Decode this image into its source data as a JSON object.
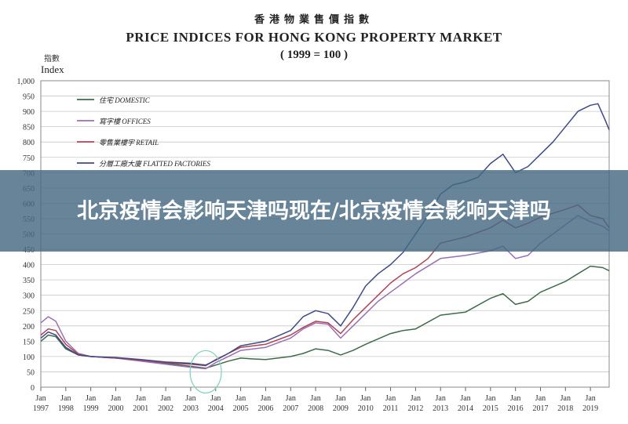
{
  "header": {
    "title_cn": "香港物業售價指數",
    "title_en": "PRICE INDICES FOR HONG KONG PROPERTY MARKET",
    "subtitle": "( 1999 = 100 )"
  },
  "banner": {
    "text": "北京疫情会影响天津吗现在/北京疫情会影响天津吗"
  },
  "chart_data": {
    "type": "line",
    "title": "PRICE INDICES FOR HONG KONG PROPERTY MARKET",
    "subtitle": "( 1999 = 100 )",
    "ylabel_cn": "指數",
    "ylabel": "Index",
    "ylim": [
      0,
      1000
    ],
    "yticks": [
      0,
      50,
      100,
      150,
      200,
      250,
      300,
      350,
      400,
      450,
      500,
      550,
      600,
      650,
      700,
      750,
      800,
      850,
      900,
      950,
      1000
    ],
    "ytick_labels": [
      "0",
      "50",
      "100",
      "150",
      "200",
      "250",
      "300",
      "350",
      "400",
      "450",
      "500",
      "550",
      "600",
      "650",
      "700",
      "750",
      "800",
      "850",
      "900",
      "950",
      "1,000"
    ],
    "xlim": [
      1997.0,
      2019.75
    ],
    "xticks": [
      {
        "year": 1997,
        "top": "Jan",
        "bottom": "1997"
      },
      {
        "year": 1998,
        "top": "Jan",
        "bottom": "1998"
      },
      {
        "year": 1999,
        "top": "Jan",
        "bottom": "1999"
      },
      {
        "year": 2000,
        "top": "Jan",
        "bottom": "2000"
      },
      {
        "year": 2001,
        "top": "Jan",
        "bottom": "2001"
      },
      {
        "year": 2002,
        "top": "Jan",
        "bottom": "2002"
      },
      {
        "year": 2003,
        "top": "Jan",
        "bottom": "2003"
      },
      {
        "year": 2004,
        "top": "Jan",
        "bottom": "2004"
      },
      {
        "year": 2005,
        "top": "Jan",
        "bottom": "2005"
      },
      {
        "year": 2006,
        "top": "Jan",
        "bottom": "2006"
      },
      {
        "year": 2007,
        "top": "Jan",
        "bottom": "2007"
      },
      {
        "year": 2008,
        "top": "Jan",
        "bottom": "2008"
      },
      {
        "year": 2009,
        "top": "Jan",
        "bottom": "2009"
      },
      {
        "year": 2010,
        "top": "Jan",
        "bottom": "2010"
      },
      {
        "year": 2011,
        "top": "Jan",
        "bottom": "2011"
      },
      {
        "year": 2012,
        "top": "Jan",
        "bottom": "2012"
      },
      {
        "year": 2013,
        "top": "Jan",
        "bottom": "2013"
      },
      {
        "year": 2014,
        "top": "Jan",
        "bottom": "2014"
      },
      {
        "year": 2015,
        "top": "Jan",
        "bottom": "2015"
      },
      {
        "year": 2016,
        "top": "Jan",
        "bottom": "2016"
      },
      {
        "year": 2017,
        "top": "Jan",
        "bottom": "2017"
      },
      {
        "year": 2018,
        "top": "Jan",
        "bottom": "2018"
      },
      {
        "year": 2019,
        "top": "Jan",
        "bottom": "2019"
      }
    ],
    "grid": true,
    "legend_position": "top-left",
    "annotation": "circle around 2003 trough",
    "series": [
      {
        "name": "DOMESTIC",
        "name_cn": "住宅",
        "color": "#3d6b4a",
        "x": [
          1997.0,
          1997.3,
          1997.6,
          1998.0,
          1998.5,
          1999.0,
          2000.0,
          2001.0,
          2002.0,
          2003.0,
          2003.6,
          2004.0,
          2004.5,
          2005.0,
          2005.5,
          2006.0,
          2007.0,
          2007.5,
          2008.0,
          2008.5,
          2009.0,
          2009.5,
          2010.0,
          2011.0,
          2011.5,
          2012.0,
          2013.0,
          2014.0,
          2015.0,
          2015.5,
          2016.0,
          2016.5,
          2017.0,
          2018.0,
          2018.5,
          2019.0,
          2019.5,
          2019.75
        ],
        "values": [
          150,
          170,
          165,
          125,
          105,
          100,
          95,
          88,
          78,
          68,
          62,
          72,
          85,
          95,
          92,
          90,
          100,
          110,
          125,
          120,
          105,
          120,
          140,
          175,
          185,
          190,
          235,
          245,
          290,
          305,
          270,
          280,
          310,
          345,
          370,
          395,
          390,
          380
        ]
      },
      {
        "name": "OFFICES",
        "name_cn": "寫字樓",
        "color": "#9a6fb5",
        "x": [
          1997.0,
          1997.3,
          1997.6,
          1998.0,
          1998.5,
          1999.0,
          2000.0,
          2001.0,
          2002.0,
          2003.0,
          2003.6,
          2004.0,
          2004.5,
          2005.0,
          2006.0,
          2007.0,
          2007.5,
          2008.0,
          2008.5,
          2009.0,
          2009.5,
          2010.0,
          2010.5,
          2011.0,
          2011.5,
          2012.0,
          2013.0,
          2014.0,
          2015.0,
          2015.5,
          2016.0,
          2016.5,
          2017.0,
          2017.5,
          2018.0,
          2018.5,
          2019.0,
          2019.5,
          2019.75
        ],
        "values": [
          210,
          230,
          215,
          150,
          110,
          100,
          95,
          85,
          75,
          65,
          60,
          80,
          100,
          120,
          130,
          160,
          190,
          210,
          205,
          160,
          200,
          240,
          280,
          310,
          340,
          370,
          420,
          430,
          445,
          460,
          420,
          430,
          470,
          500,
          530,
          560,
          540,
          525,
          510
        ]
      },
      {
        "name": "RETAIL",
        "name_cn": "零售業樓宇",
        "color": "#b04257",
        "x": [
          1997.0,
          1997.3,
          1997.6,
          1998.0,
          1998.5,
          1999.0,
          2000.0,
          2001.0,
          2002.0,
          2003.0,
          2003.6,
          2004.0,
          2004.5,
          2005.0,
          2006.0,
          2007.0,
          2007.5,
          2008.0,
          2008.5,
          2009.0,
          2009.5,
          2010.0,
          2010.5,
          2011.0,
          2011.5,
          2012.0,
          2012.5,
          2013.0,
          2014.0,
          2015.0,
          2015.5,
          2016.0,
          2016.5,
          2017.0,
          2018.0,
          2018.5,
          2019.0,
          2019.5,
          2019.75
        ],
        "values": [
          170,
          190,
          185,
          140,
          108,
          100,
          95,
          88,
          80,
          75,
          70,
          90,
          110,
          130,
          140,
          170,
          195,
          215,
          210,
          175,
          220,
          260,
          300,
          340,
          370,
          390,
          420,
          470,
          490,
          520,
          545,
          520,
          535,
          555,
          580,
          595,
          560,
          550,
          520
        ]
      },
      {
        "name": "FLATTED FACTORIES",
        "name_cn": "分層工廠大廈",
        "color": "#3f4a86",
        "x": [
          1997.0,
          1997.3,
          1997.6,
          1998.0,
          1998.5,
          1999.0,
          2000.0,
          2001.0,
          2002.0,
          2003.0,
          2003.6,
          2004.0,
          2004.5,
          2005.0,
          2006.0,
          2007.0,
          2007.5,
          2008.0,
          2008.5,
          2009.0,
          2009.5,
          2010.0,
          2010.5,
          2011.0,
          2011.5,
          2012.0,
          2012.5,
          2013.0,
          2013.5,
          2014.0,
          2014.5,
          2015.0,
          2015.5,
          2016.0,
          2016.5,
          2017.0,
          2017.5,
          2018.0,
          2018.5,
          2019.0,
          2019.3,
          2019.6,
          2019.75
        ],
        "values": [
          160,
          180,
          170,
          130,
          105,
          100,
          97,
          90,
          82,
          78,
          72,
          88,
          110,
          135,
          150,
          185,
          230,
          250,
          240,
          200,
          260,
          330,
          370,
          400,
          440,
          500,
          560,
          630,
          660,
          670,
          685,
          730,
          760,
          700,
          720,
          760,
          800,
          850,
          900,
          920,
          925,
          870,
          840
        ]
      }
    ]
  }
}
